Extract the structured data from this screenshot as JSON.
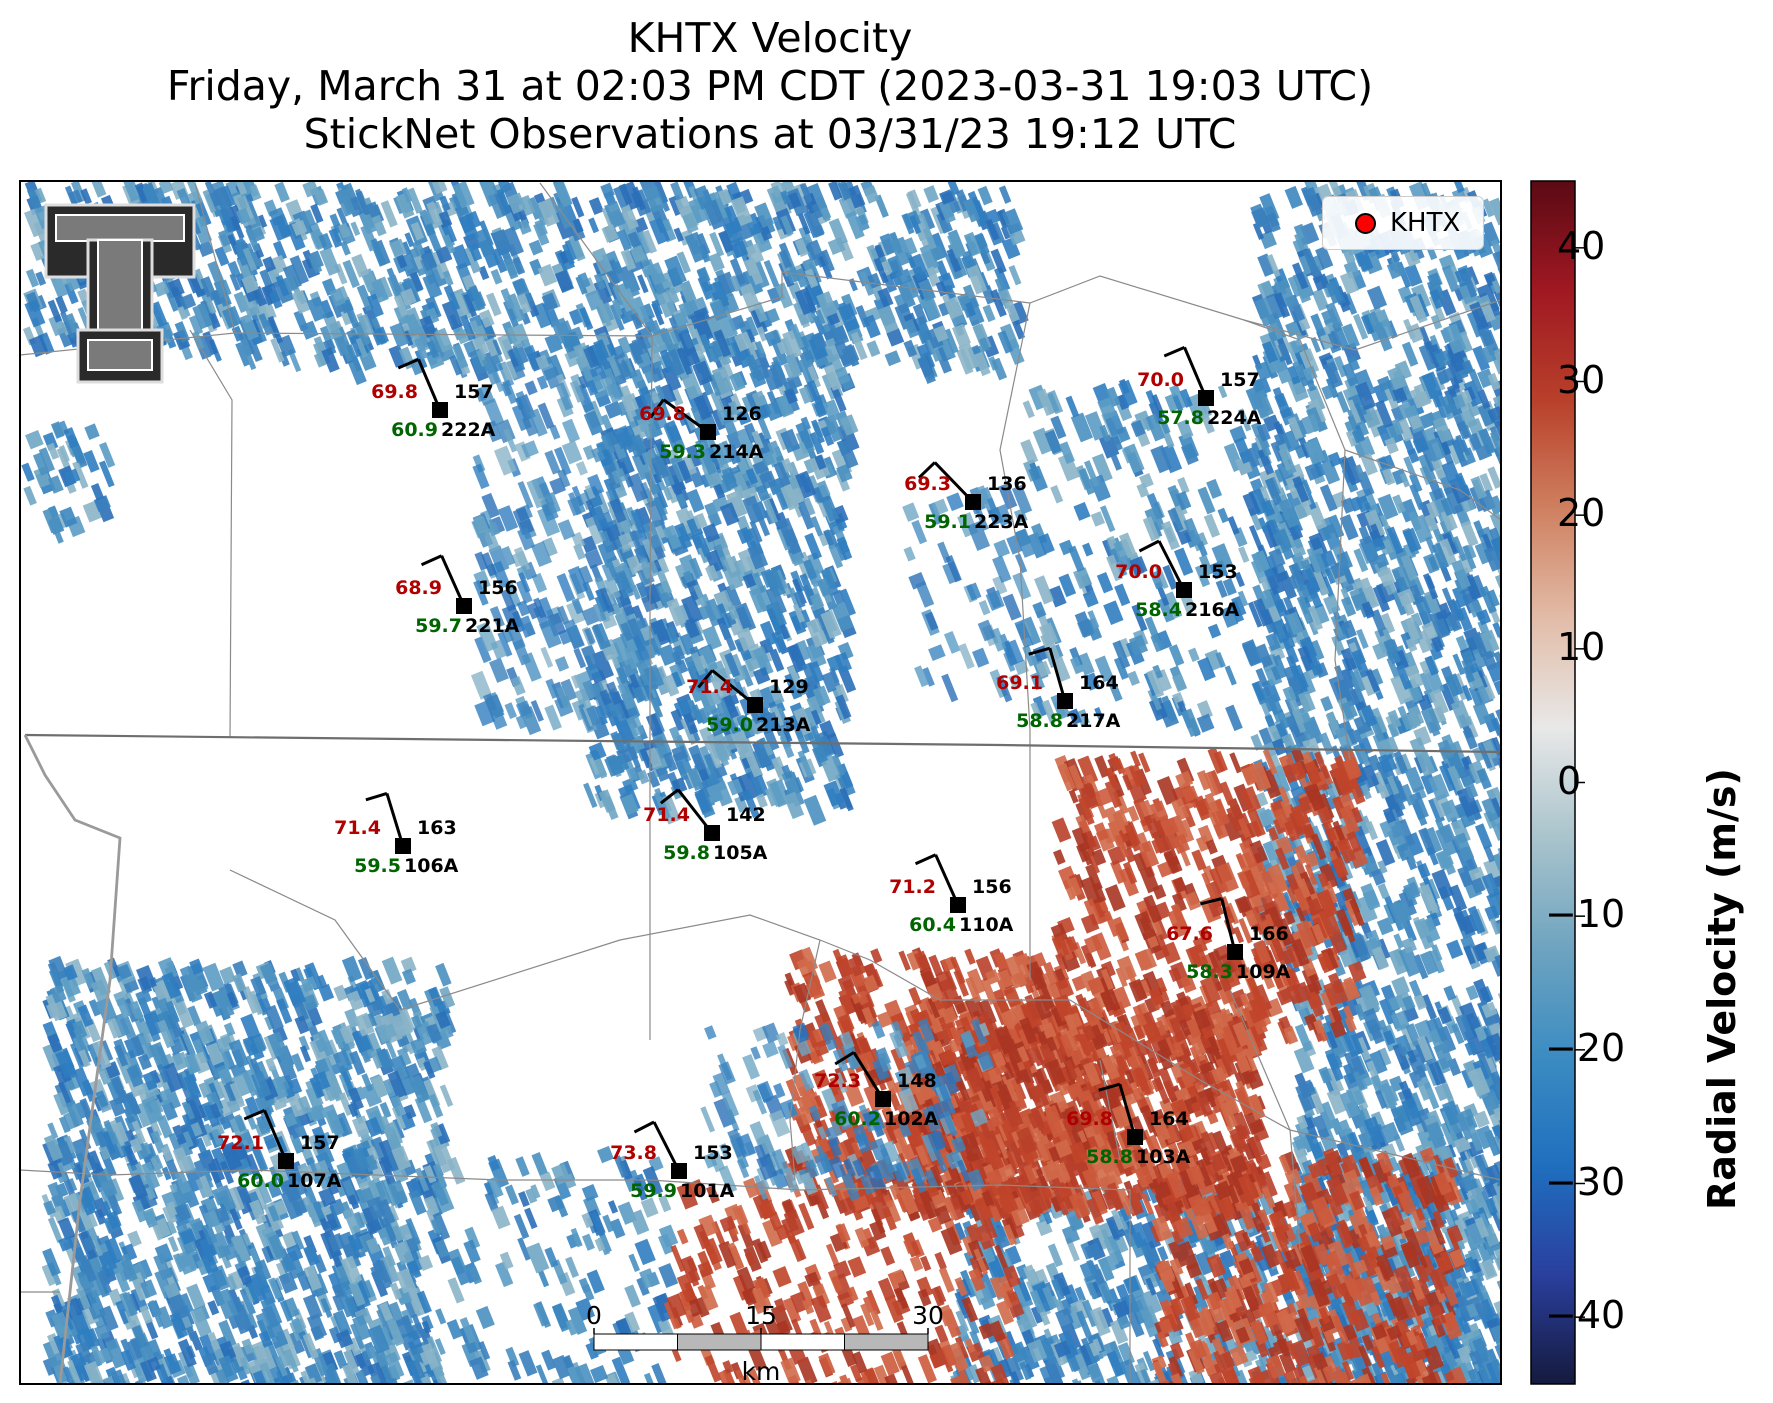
{
  "title": {
    "line1": "KHTX Velocity",
    "line2": "Friday, March 31 at 02:03 PM CDT (2023-03-31 19:03 UTC)",
    "line3": "StickNet Observations at 03/31/23 19:12 UTC"
  },
  "legend": {
    "label": "KHTX",
    "marker_color": "#ff0000"
  },
  "colorbar": {
    "label": "Radial Velocity (m/s)",
    "ticks": [
      "40",
      "30",
      "20",
      "10",
      "0",
      "−10",
      "−20",
      "−30",
      "−40"
    ],
    "range": [
      -45,
      45
    ],
    "colors": [
      "#151a3e",
      "#2a3f9e",
      "#1f6fbf",
      "#3c8cc2",
      "#6fa4c0",
      "#a9c4cc",
      "#e8e8e8",
      "#e2bca8",
      "#cf8060",
      "#b8402a",
      "#a01822",
      "#5a0a14"
    ]
  },
  "scale_bar": {
    "labels": [
      "0",
      "15",
      "30"
    ],
    "unit": "km"
  },
  "stations": [
    {
      "id": "222A",
      "temp": "69.8",
      "dew": "60.9",
      "dir": "157"
    },
    {
      "id": "214A",
      "temp": "69.8",
      "dew": "59.3",
      "dir": "126"
    },
    {
      "id": "223A",
      "temp": "69.3",
      "dew": "59.1",
      "dir": "136"
    },
    {
      "id": "224A",
      "temp": "70.0",
      "dew": "57.8",
      "dir": "157"
    },
    {
      "id": "221A",
      "temp": "68.9",
      "dew": "59.7",
      "dir": "156"
    },
    {
      "id": "216A",
      "temp": "70.0",
      "dew": "58.4",
      "dir": "153"
    },
    {
      "id": "213A",
      "temp": "71.4",
      "dew": "59.0",
      "dir": "129"
    },
    {
      "id": "217A",
      "temp": "69.1",
      "dew": "58.8",
      "dir": "164"
    },
    {
      "id": "106A",
      "temp": "71.4",
      "dew": "59.5",
      "dir": "163"
    },
    {
      "id": "105A",
      "temp": "71.4",
      "dew": "59.8",
      "dir": "142"
    },
    {
      "id": "110A",
      "temp": "71.2",
      "dew": "60.4",
      "dir": "156"
    },
    {
      "id": "109A",
      "temp": "67.6",
      "dew": "58.3",
      "dir": "166"
    },
    {
      "id": "102A",
      "temp": "72.3",
      "dew": "60.2",
      "dir": "148"
    },
    {
      "id": "107A",
      "temp": "72.1",
      "dew": "60.0",
      "dir": "157"
    },
    {
      "id": "101A",
      "temp": "73.8",
      "dew": "59.9",
      "dir": "153"
    },
    {
      "id": "103A",
      "temp": "69.8",
      "dew": "58.8",
      "dir": "164"
    }
  ],
  "colors": {
    "temp": "#b00000",
    "dew": "#006400",
    "label": "#000000",
    "positive_velocity": "#c0452a",
    "negative_velocity": "#3c86bf"
  }
}
